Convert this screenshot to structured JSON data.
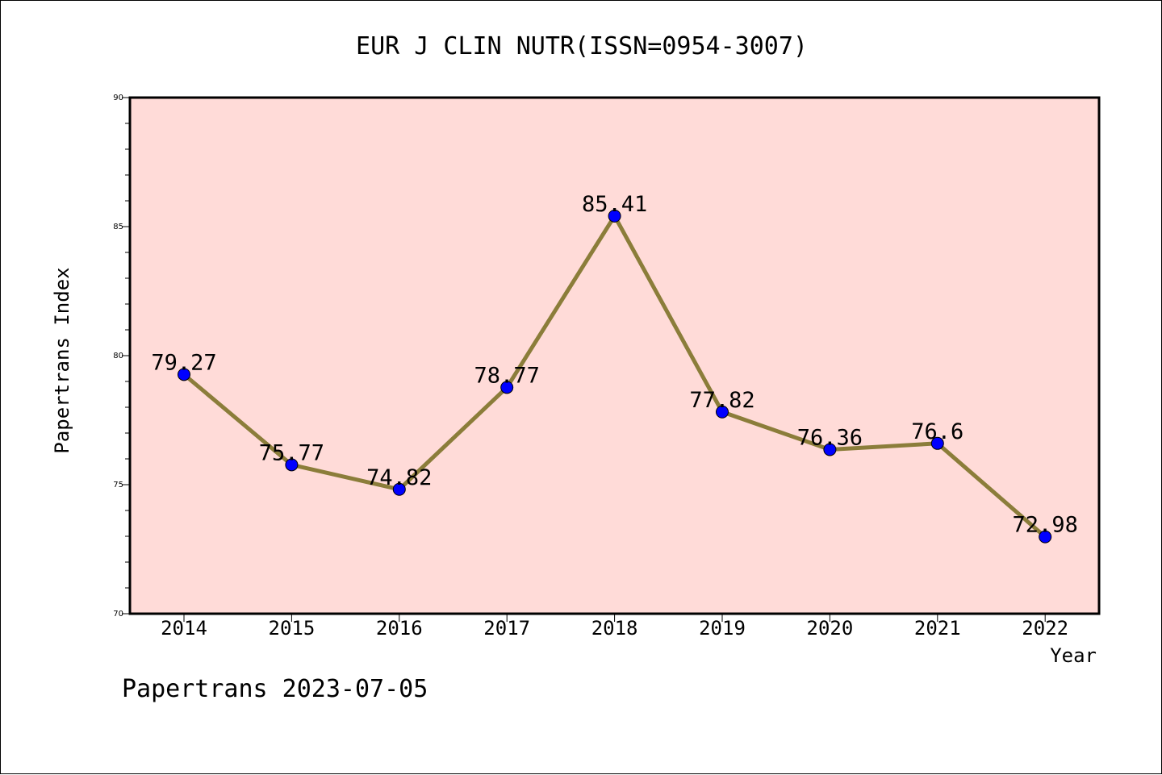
{
  "chart_data": {
    "type": "line",
    "title": "EUR J CLIN NUTR(ISSN=0954-3007)",
    "xlabel": "Year",
    "ylabel": "Papertrans Index",
    "categories": [
      "2014",
      "2015",
      "2016",
      "2017",
      "2018",
      "2019",
      "2020",
      "2021",
      "2022"
    ],
    "values": [
      79.27,
      75.77,
      74.82,
      78.77,
      85.41,
      77.82,
      76.36,
      76.6,
      72.98
    ],
    "data_labels": [
      "79.27",
      "75.77",
      "74.82",
      "78.77",
      "85.41",
      "77.82",
      "76.36",
      "76.6",
      "72.98"
    ],
    "ylim": [
      70,
      90
    ],
    "yticks": [
      "70",
      "75",
      "80",
      "85",
      "90"
    ],
    "grid": false,
    "legend": "none",
    "colors": {
      "plot_background": "#FFDBD8",
      "line": "#8B7D3A",
      "marker": "#0000FF"
    }
  },
  "footer": {
    "text": "Papertrans 2023-07-05"
  }
}
